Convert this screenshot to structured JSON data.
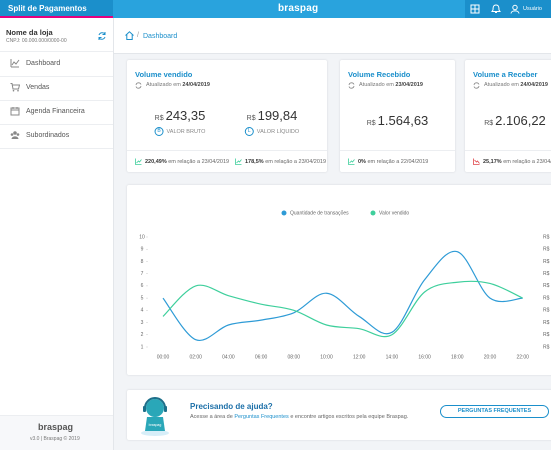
{
  "header": {
    "app_title": "Split de Pagamentos",
    "logo": "braspag",
    "user": "Usuário"
  },
  "sidebar": {
    "store_name": "Nome da loja",
    "store_id": "CNPJ: 00.000.000/0000-00",
    "menu": [
      "Dashboard",
      "Vendas",
      "Agenda Financeira",
      "Subordinados"
    ],
    "footer_logo": "braspag",
    "version": "v3.0 | Braspag © 2019"
  },
  "breadcrumb": "Dashboard",
  "cards": [
    {
      "title": "Volume vendido",
      "updated_label": "Atualizado em",
      "updated_date": "24/04/2019",
      "amounts": [
        {
          "currency": "R$",
          "amount": "243,35",
          "caption": "VALOR BRUTO",
          "icon": "B"
        },
        {
          "currency": "R$",
          "amount": "199,84",
          "caption": "VALOR LÍQUIDO",
          "icon": "L"
        }
      ],
      "changes": [
        {
          "pct": "220,49%",
          "text": "em relação a 23/04/2019"
        },
        {
          "pct": "178,5%",
          "text": "em relação a 23/04/2019"
        }
      ]
    },
    {
      "title": "Volume Recebido",
      "updated_label": "Atualizado em",
      "updated_date": "23/04/2019",
      "amounts": [
        {
          "currency": "R$",
          "amount": "1.564,63"
        }
      ],
      "changes": [
        {
          "pct": "0%",
          "text": "em relação a 22/04/2019"
        }
      ]
    },
    {
      "title": "Volume a Receber",
      "updated_label": "Atualizado em",
      "updated_date": "24/04/2019",
      "amounts": [
        {
          "currency": "R$",
          "amount": "2.106,22"
        }
      ],
      "changes": [
        {
          "pct": "25,17%",
          "text": "em relação a 23/04/2019"
        }
      ]
    }
  ],
  "chart_data": {
    "type": "line",
    "categories": [
      "00:00",
      "02:00",
      "04:00",
      "06:00",
      "08:00",
      "10:00",
      "12:00",
      "14:00",
      "16:00",
      "18:00",
      "20:00",
      "22:00"
    ],
    "series": [
      {
        "name": "Quantidade de transações",
        "color": "#2e9bd6",
        "values": [
          5,
          1.6,
          2.8,
          3.2,
          3.8,
          5.4,
          3.5,
          2.2,
          6.5,
          8.8,
          5,
          5
        ]
      },
      {
        "name": "Valor vendido",
        "color": "#3ecf9c",
        "values": [
          3.5,
          6,
          5.2,
          4.5,
          4,
          2.8,
          2.5,
          2,
          5.5,
          6.3,
          6.2,
          5
        ]
      }
    ],
    "ylim": [
      1,
      10
    ],
    "yticks": [
      1,
      2,
      3,
      4,
      5,
      6,
      7,
      8,
      9,
      10
    ],
    "right_axis_labels": [
      "R$",
      "R$",
      "R$",
      "R$",
      "R$",
      "R$",
      "R$",
      "R$",
      "R$",
      "R$"
    ],
    "grid": false
  },
  "help": {
    "title": "Precisando de ajuda?",
    "text_before": "Acesse a área de",
    "link": "Perguntas Frequentes",
    "text_after": "e encontre artigos escritos pela equipe Braspag.",
    "button": "PERGUNTAS FREQUENTES",
    "mascot_label": "braspag"
  }
}
